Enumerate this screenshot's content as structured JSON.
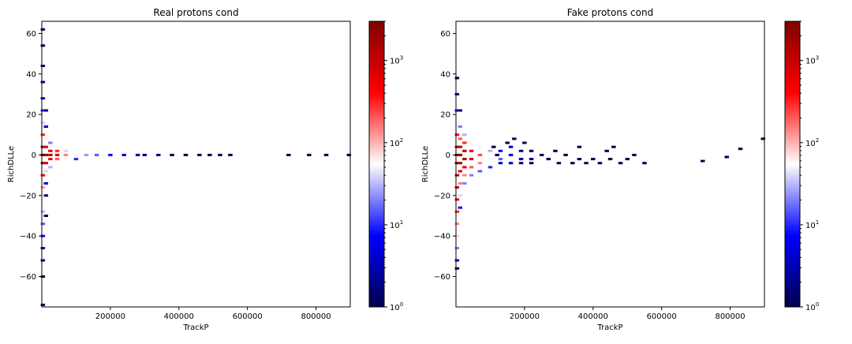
{
  "chart_data": [
    {
      "type": "heatmap",
      "title": "Real protons cond",
      "xlabel": "TrackP",
      "ylabel": "RichDLLe",
      "xlim": [
        0,
        900000
      ],
      "ylim": [
        -75,
        66
      ],
      "xticks": [
        200000,
        400000,
        600000,
        800000
      ],
      "xtick_labels": [
        "200000",
        "400000",
        "600000",
        "800000"
      ],
      "yticks": [
        -60,
        -40,
        -20,
        0,
        20,
        40,
        60
      ],
      "ytick_labels": [
        "−60",
        "−40",
        "−20",
        "0",
        "20",
        "40",
        "60"
      ],
      "colorbar": {
        "scale": "log",
        "range": [
          1,
          3000
        ],
        "ticks": [
          1,
          10,
          100,
          1000
        ],
        "cmap": "seismic"
      },
      "cells": [
        {
          "x": 3000,
          "y": 62,
          "count": 1
        },
        {
          "x": 3000,
          "y": 54,
          "count": 1
        },
        {
          "x": 3000,
          "y": 44,
          "count": 2
        },
        {
          "x": 3000,
          "y": 36,
          "count": 3
        },
        {
          "x": 3000,
          "y": 28,
          "count": 5
        },
        {
          "x": 3000,
          "y": 22,
          "count": 10
        },
        {
          "x": 3000,
          "y": 16,
          "count": 40
        },
        {
          "x": 3000,
          "y": 10,
          "count": 300
        },
        {
          "x": 3000,
          "y": 4,
          "count": 2000
        },
        {
          "x": 3000,
          "y": 0,
          "count": 3000
        },
        {
          "x": 3000,
          "y": -4,
          "count": 2000
        },
        {
          "x": 3000,
          "y": -10,
          "count": 400
        },
        {
          "x": 3000,
          "y": -16,
          "count": 120
        },
        {
          "x": 3000,
          "y": -22,
          "count": 60
        },
        {
          "x": 3000,
          "y": -28,
          "count": 30
        },
        {
          "x": 3000,
          "y": -34,
          "count": 15
        },
        {
          "x": 3000,
          "y": -40,
          "count": 8
        },
        {
          "x": 3000,
          "y": -46,
          "count": 4
        },
        {
          "x": 3000,
          "y": -52,
          "count": 2
        },
        {
          "x": 3000,
          "y": -60,
          "count": 1
        },
        {
          "x": 3000,
          "y": -74,
          "count": 1
        },
        {
          "x": 12000,
          "y": 22,
          "count": 2
        },
        {
          "x": 12000,
          "y": 14,
          "count": 5
        },
        {
          "x": 12000,
          "y": 8,
          "count": 60
        },
        {
          "x": 12000,
          "y": 4,
          "count": 600
        },
        {
          "x": 12000,
          "y": 0,
          "count": 2500
        },
        {
          "x": 12000,
          "y": -4,
          "count": 800
        },
        {
          "x": 12000,
          "y": -8,
          "count": 80
        },
        {
          "x": 12000,
          "y": -14,
          "count": 6
        },
        {
          "x": 12000,
          "y": -20,
          "count": 2
        },
        {
          "x": 12000,
          "y": -30,
          "count": 1
        },
        {
          "x": 25000,
          "y": 6,
          "count": 20
        },
        {
          "x": 25000,
          "y": 2,
          "count": 600
        },
        {
          "x": 25000,
          "y": 0,
          "count": 1500
        },
        {
          "x": 25000,
          "y": -2,
          "count": 500
        },
        {
          "x": 25000,
          "y": -6,
          "count": 30
        },
        {
          "x": 45000,
          "y": 2,
          "count": 300
        },
        {
          "x": 45000,
          "y": 0,
          "count": 600
        },
        {
          "x": 45000,
          "y": -2,
          "count": 200
        },
        {
          "x": 70000,
          "y": 0,
          "count": 150
        },
        {
          "x": 70000,
          "y": -2,
          "count": 60
        },
        {
          "x": 70000,
          "y": 2,
          "count": 40
        },
        {
          "x": 100000,
          "y": 0,
          "count": 60
        },
        {
          "x": 100000,
          "y": -2,
          "count": 10
        },
        {
          "x": 130000,
          "y": 0,
          "count": 25
        },
        {
          "x": 160000,
          "y": 0,
          "count": 15
        },
        {
          "x": 200000,
          "y": 0,
          "count": 8
        },
        {
          "x": 240000,
          "y": 0,
          "count": 5
        },
        {
          "x": 280000,
          "y": 0,
          "count": 3
        },
        {
          "x": 300000,
          "y": 0,
          "count": 2
        },
        {
          "x": 340000,
          "y": 0,
          "count": 2
        },
        {
          "x": 380000,
          "y": 0,
          "count": 1
        },
        {
          "x": 420000,
          "y": 0,
          "count": 1
        },
        {
          "x": 460000,
          "y": 0,
          "count": 1
        },
        {
          "x": 490000,
          "y": 0,
          "count": 1
        },
        {
          "x": 520000,
          "y": 0,
          "count": 1
        },
        {
          "x": 550000,
          "y": 0,
          "count": 1
        },
        {
          "x": 720000,
          "y": 0,
          "count": 1
        },
        {
          "x": 780000,
          "y": 0,
          "count": 1
        },
        {
          "x": 830000,
          "y": 0,
          "count": 1
        },
        {
          "x": 896000,
          "y": 0,
          "count": 1
        }
      ]
    },
    {
      "type": "heatmap",
      "title": "Fake protons cond",
      "xlabel": "TrackP",
      "ylabel": "RichDLLe",
      "xlim": [
        0,
        900000
      ],
      "ylim": [
        -75,
        66
      ],
      "xticks": [
        200000,
        400000,
        600000,
        800000
      ],
      "xtick_labels": [
        "200000",
        "400000",
        "600000",
        "800000"
      ],
      "yticks": [
        -60,
        -40,
        -20,
        0,
        20,
        40,
        60
      ],
      "ytick_labels": [
        "−60",
        "−40",
        "−20",
        "0",
        "20",
        "40",
        "60"
      ],
      "colorbar": {
        "scale": "log",
        "range": [
          1,
          3000
        ],
        "ticks": [
          1,
          10,
          100,
          1000
        ],
        "cmap": "seismic"
      },
      "cells": [
        {
          "x": 3000,
          "y": 38,
          "count": 1
        },
        {
          "x": 3000,
          "y": 30,
          "count": 2
        },
        {
          "x": 3000,
          "y": 22,
          "count": 8
        },
        {
          "x": 3000,
          "y": 16,
          "count": 50
        },
        {
          "x": 3000,
          "y": 10,
          "count": 400
        },
        {
          "x": 3000,
          "y": 4,
          "count": 2000
        },
        {
          "x": 3000,
          "y": 0,
          "count": 3000
        },
        {
          "x": 3000,
          "y": -4,
          "count": 2500
        },
        {
          "x": 3000,
          "y": -10,
          "count": 1500
        },
        {
          "x": 3000,
          "y": -16,
          "count": 900
        },
        {
          "x": 3000,
          "y": -22,
          "count": 500
        },
        {
          "x": 3000,
          "y": -28,
          "count": 300
        },
        {
          "x": 3000,
          "y": -34,
          "count": 150
        },
        {
          "x": 3000,
          "y": -40,
          "count": 80
        },
        {
          "x": 3000,
          "y": -46,
          "count": 20
        },
        {
          "x": 3000,
          "y": -52,
          "count": 4
        },
        {
          "x": 3000,
          "y": -56,
          "count": 1
        },
        {
          "x": 12000,
          "y": 22,
          "count": 2
        },
        {
          "x": 12000,
          "y": 14,
          "count": 20
        },
        {
          "x": 12000,
          "y": 8,
          "count": 200
        },
        {
          "x": 12000,
          "y": 4,
          "count": 1000
        },
        {
          "x": 12000,
          "y": 0,
          "count": 2500
        },
        {
          "x": 12000,
          "y": -4,
          "count": 1500
        },
        {
          "x": 12000,
          "y": -8,
          "count": 500
        },
        {
          "x": 12000,
          "y": -14,
          "count": 150
        },
        {
          "x": 12000,
          "y": -20,
          "count": 40
        },
        {
          "x": 12000,
          "y": -26,
          "count": 8
        },
        {
          "x": 25000,
          "y": 10,
          "count": 30
        },
        {
          "x": 25000,
          "y": 6,
          "count": 300
        },
        {
          "x": 25000,
          "y": 2,
          "count": 1200
        },
        {
          "x": 25000,
          "y": -2,
          "count": 1500
        },
        {
          "x": 25000,
          "y": -6,
          "count": 600
        },
        {
          "x": 25000,
          "y": -10,
          "count": 150
        },
        {
          "x": 25000,
          "y": -14,
          "count": 20
        },
        {
          "x": 45000,
          "y": 6,
          "count": 60
        },
        {
          "x": 45000,
          "y": 2,
          "count": 500
        },
        {
          "x": 45000,
          "y": -2,
          "count": 700
        },
        {
          "x": 45000,
          "y": -6,
          "count": 200
        },
        {
          "x": 45000,
          "y": -10,
          "count": 20
        },
        {
          "x": 70000,
          "y": 4,
          "count": 60
        },
        {
          "x": 70000,
          "y": 0,
          "count": 250
        },
        {
          "x": 70000,
          "y": -4,
          "count": 150
        },
        {
          "x": 70000,
          "y": -8,
          "count": 15
        },
        {
          "x": 100000,
          "y": 2,
          "count": 30
        },
        {
          "x": 100000,
          "y": -2,
          "count": 60
        },
        {
          "x": 100000,
          "y": -6,
          "count": 10
        },
        {
          "x": 130000,
          "y": 2,
          "count": 8
        },
        {
          "x": 130000,
          "y": -2,
          "count": 15
        },
        {
          "x": 130000,
          "y": -4,
          "count": 5
        },
        {
          "x": 160000,
          "y": 4,
          "count": 3
        },
        {
          "x": 160000,
          "y": 0,
          "count": 5
        },
        {
          "x": 160000,
          "y": -4,
          "count": 4
        },
        {
          "x": 190000,
          "y": 2,
          "count": 2
        },
        {
          "x": 190000,
          "y": -2,
          "count": 3
        },
        {
          "x": 190000,
          "y": -4,
          "count": 2
        },
        {
          "x": 220000,
          "y": 2,
          "count": 1
        },
        {
          "x": 220000,
          "y": -2,
          "count": 2
        },
        {
          "x": 220000,
          "y": -4,
          "count": 1
        },
        {
          "x": 150000,
          "y": 6,
          "count": 1
        },
        {
          "x": 170000,
          "y": 8,
          "count": 1
        },
        {
          "x": 200000,
          "y": 6,
          "count": 1
        },
        {
          "x": 110000,
          "y": 4,
          "count": 1
        },
        {
          "x": 250000,
          "y": 0,
          "count": 1
        },
        {
          "x": 270000,
          "y": -2,
          "count": 1
        },
        {
          "x": 290000,
          "y": 2,
          "count": 1
        },
        {
          "x": 300000,
          "y": -4,
          "count": 1
        },
        {
          "x": 320000,
          "y": 0,
          "count": 1
        },
        {
          "x": 340000,
          "y": -4,
          "count": 1
        },
        {
          "x": 360000,
          "y": -2,
          "count": 1
        },
        {
          "x": 380000,
          "y": -4,
          "count": 1
        },
        {
          "x": 400000,
          "y": -2,
          "count": 1
        },
        {
          "x": 420000,
          "y": -4,
          "count": 1
        },
        {
          "x": 450000,
          "y": -2,
          "count": 1
        },
        {
          "x": 480000,
          "y": -4,
          "count": 1
        },
        {
          "x": 500000,
          "y": -2,
          "count": 1
        },
        {
          "x": 520000,
          "y": 0,
          "count": 1
        },
        {
          "x": 550000,
          "y": -4,
          "count": 1
        },
        {
          "x": 440000,
          "y": 2,
          "count": 1
        },
        {
          "x": 460000,
          "y": 4,
          "count": 1
        },
        {
          "x": 360000,
          "y": 4,
          "count": 1
        },
        {
          "x": 120000,
          "y": 0,
          "count": 1
        },
        {
          "x": 720000,
          "y": -3,
          "count": 1
        },
        {
          "x": 790000,
          "y": -1,
          "count": 1
        },
        {
          "x": 830000,
          "y": 3,
          "count": 1
        },
        {
          "x": 896000,
          "y": 8,
          "count": 1
        }
      ]
    }
  ]
}
